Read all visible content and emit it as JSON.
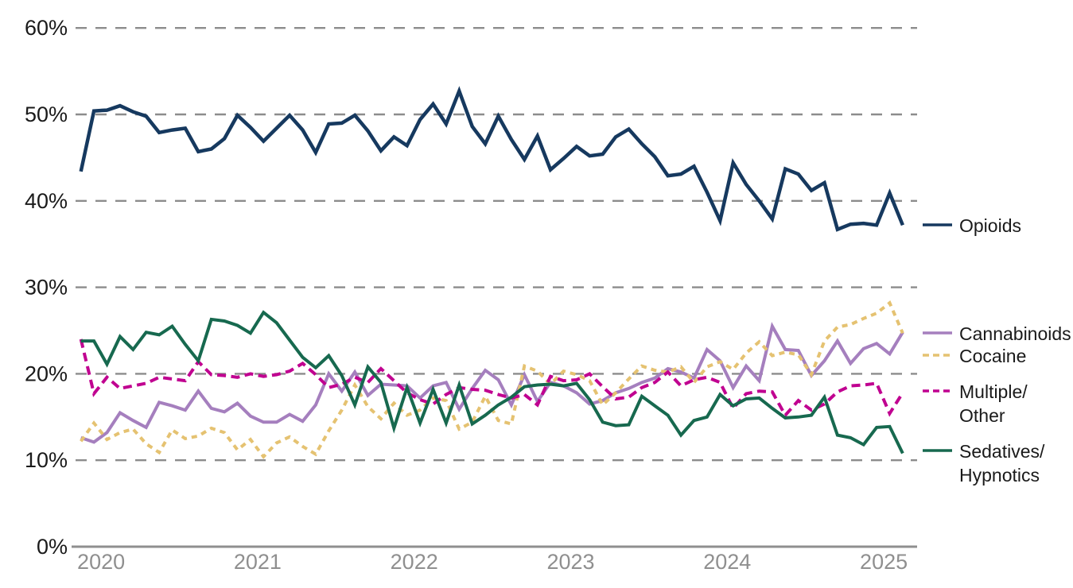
{
  "chart_data": {
    "type": "line",
    "unit": "%",
    "title": "",
    "x_start": "2019-12",
    "x_frequency": "monthly",
    "n_points": 64,
    "grid": "horizontal-dashed",
    "legend_position": "right",
    "axis": {
      "y_ticks": [
        {
          "value": 0,
          "label": "0%"
        },
        {
          "value": 10,
          "label": "10%"
        },
        {
          "value": 20,
          "label": "20%"
        },
        {
          "value": 30,
          "label": "30%"
        },
        {
          "value": 40,
          "label": "40%"
        },
        {
          "value": 50,
          "label": "50%"
        },
        {
          "value": 60,
          "label": "60%"
        }
      ],
      "ylim": [
        0,
        62
      ],
      "x_ticks": [
        {
          "label": "2020",
          "month_index": 1
        },
        {
          "label": "2021",
          "month_index": 13
        },
        {
          "label": "2022",
          "month_index": 25
        },
        {
          "label": "2023",
          "month_index": 37
        },
        {
          "label": "2024",
          "month_index": 49
        },
        {
          "label": "2025",
          "month_index": 61
        }
      ]
    },
    "colors": {
      "grid": "#8c8c8c",
      "axis": "#8f8f8f",
      "x_tick_text": "#8f8f8f",
      "y_tick_text": "#1a1a1a",
      "legend_text": "#1a1a1a"
    },
    "series": [
      {
        "key": "opioids",
        "label": "Opioids",
        "label_lines": [
          "Opioids"
        ],
        "color": "#16395f",
        "dash": null,
        "width": 4.5,
        "values": [
          43.4,
          50.4,
          50.5,
          51.0,
          50.3,
          49.8,
          47.9,
          48.2,
          48.4,
          45.7,
          46.0,
          47.2,
          49.9,
          48.5,
          46.9,
          48.4,
          49.9,
          48.2,
          45.6,
          48.9,
          49.0,
          49.9,
          48.1,
          45.8,
          47.4,
          46.4,
          49.4,
          51.2,
          48.9,
          52.7,
          48.6,
          46.6,
          49.8,
          47.1,
          44.8,
          47.5,
          43.6,
          44.9,
          46.3,
          45.2,
          45.4,
          47.4,
          48.3,
          46.6,
          45.1,
          42.9,
          43.1,
          44.0,
          41.0,
          37.7,
          44.4,
          41.9,
          40.0,
          37.9,
          43.7,
          43.1,
          41.2,
          42.1,
          36.7,
          37.3,
          37.4,
          37.2,
          40.9,
          37.2
        ]
      },
      {
        "key": "cannabinoids",
        "label": "Cannabinoids",
        "label_lines": [
          "Cannabinoids"
        ],
        "color": "#a57fbe",
        "dash": null,
        "width": 4,
        "values": [
          12.6,
          12.1,
          13.2,
          15.5,
          14.6,
          13.8,
          16.7,
          16.3,
          15.8,
          18.0,
          16.0,
          15.6,
          16.6,
          15.1,
          14.4,
          14.4,
          15.3,
          14.5,
          16.4,
          20.0,
          18.0,
          20.2,
          17.5,
          18.8,
          18.7,
          18.6,
          17.2,
          18.6,
          19.0,
          15.9,
          18.3,
          20.4,
          19.3,
          16.4,
          19.9,
          16.8,
          19.0,
          18.6,
          17.8,
          16.5,
          16.9,
          17.8,
          18.3,
          19.0,
          19.5,
          20.6,
          20.2,
          19.5,
          22.8,
          21.5,
          18.4,
          20.9,
          19.2,
          25.5,
          22.8,
          22.7,
          19.8,
          21.5,
          23.8,
          21.2,
          22.9,
          23.5,
          22.3,
          24.8
        ]
      },
      {
        "key": "cocaine",
        "label": "Cocaine",
        "label_lines": [
          "Cocaine"
        ],
        "color": "#e5c271",
        "dash": "7 6",
        "width": 4,
        "values": [
          12.2,
          14.3,
          12.4,
          13.2,
          13.6,
          11.9,
          10.9,
          13.5,
          12.5,
          12.8,
          13.7,
          13.2,
          11.2,
          12.4,
          10.4,
          12.0,
          12.7,
          11.6,
          10.7,
          13.4,
          15.8,
          18.7,
          16.2,
          14.8,
          16.6,
          15.2,
          15.8,
          17.2,
          16.9,
          13.6,
          14.4,
          17.4,
          14.6,
          14.2,
          20.9,
          20.3,
          18.8,
          20.3,
          19.9,
          19.2,
          16.4,
          17.8,
          19.4,
          20.9,
          20.4,
          20.2,
          20.8,
          19.0,
          20.8,
          21.4,
          20.5,
          22.4,
          23.7,
          22.1,
          22.5,
          22.2,
          19.9,
          23.8,
          25.4,
          25.7,
          26.4,
          27.0,
          28.2,
          24.7
        ]
      },
      {
        "key": "multiple_other",
        "label": "Multiple/Other",
        "label_lines": [
          "Multiple/",
          "Other"
        ],
        "color": "#c00090",
        "dash": "11 6.5",
        "width": 4,
        "values": [
          24.0,
          17.7,
          19.6,
          18.3,
          18.6,
          18.9,
          19.6,
          19.4,
          19.2,
          21.4,
          19.9,
          19.8,
          19.6,
          20.0,
          19.7,
          19.9,
          20.3,
          21.2,
          19.9,
          18.4,
          18.8,
          19.6,
          19.0,
          20.6,
          19.2,
          17.8,
          17.0,
          16.5,
          17.6,
          18.4,
          18.2,
          18.1,
          17.6,
          17.2,
          17.6,
          16.4,
          19.7,
          19.2,
          19.3,
          20.0,
          18.5,
          17.1,
          17.3,
          18.4,
          19.0,
          20.2,
          18.6,
          19.3,
          19.6,
          19.0,
          16.0,
          17.7,
          18.0,
          17.9,
          15.2,
          16.9,
          15.8,
          16.5,
          17.9,
          18.6,
          18.7,
          18.9,
          15.4,
          17.8
        ]
      },
      {
        "key": "sedatives_hypnotics",
        "label": "Sedatives/Hypnotics",
        "label_lines": [
          "Sedatives/",
          "Hypnotics"
        ],
        "color": "#17694f",
        "dash": null,
        "width": 4,
        "values": [
          23.8,
          23.8,
          21.1,
          24.3,
          22.8,
          24.8,
          24.5,
          25.5,
          23.4,
          21.5,
          26.3,
          26.1,
          25.6,
          24.7,
          27.1,
          25.9,
          23.9,
          21.9,
          20.7,
          22.1,
          19.8,
          16.4,
          20.8,
          19.0,
          13.7,
          18.4,
          14.3,
          18.2,
          14.3,
          18.7,
          14.2,
          15.2,
          16.4,
          17.3,
          18.5,
          18.7,
          18.8,
          18.6,
          18.9,
          17.0,
          14.4,
          14.0,
          14.1,
          17.4,
          16.3,
          15.2,
          12.9,
          14.6,
          15.0,
          17.6,
          16.3,
          17.1,
          17.2,
          16.0,
          14.9,
          15.0,
          15.2,
          17.3,
          12.9,
          12.6,
          11.8,
          13.8,
          13.9,
          10.8
        ]
      }
    ]
  }
}
